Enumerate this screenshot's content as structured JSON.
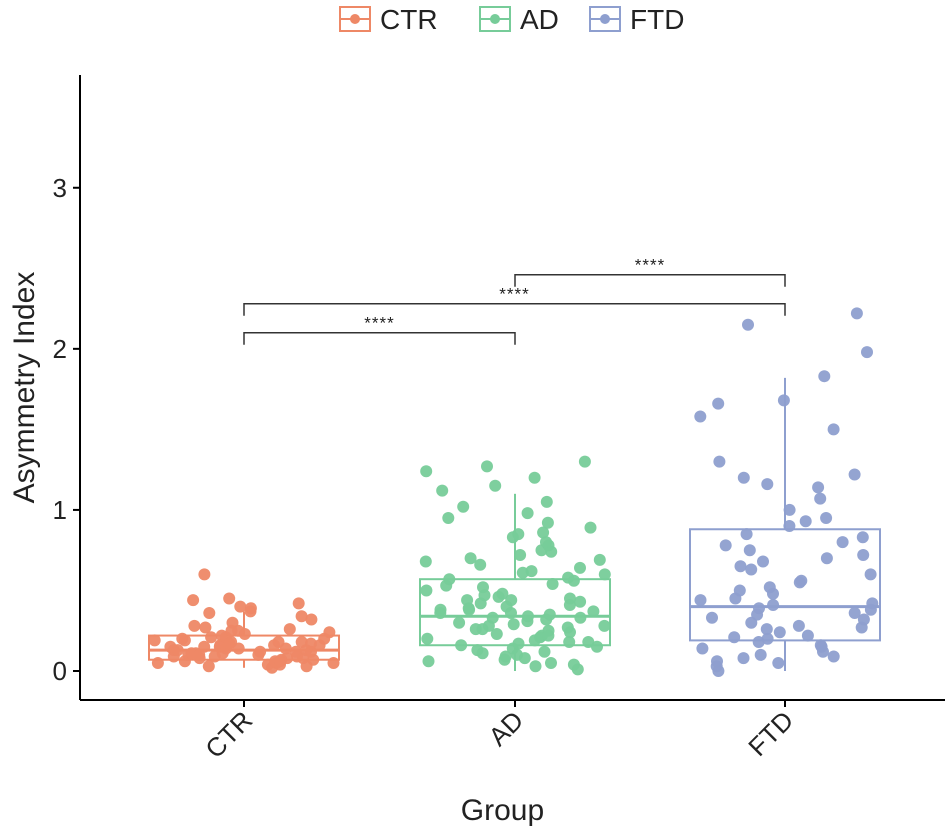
{
  "chart_data": {
    "type": "box",
    "title": "",
    "xlabel": "Group",
    "ylabel": "Asymmetry Index",
    "ylim": [
      -0.18,
      3.7
    ],
    "yticks": [
      0,
      1,
      2,
      3
    ],
    "categories": [
      "CTR",
      "AD",
      "FTD"
    ],
    "legend": {
      "position": "top",
      "entries": [
        {
          "label": "CTR",
          "color": "#EE8866"
        },
        {
          "label": "AD",
          "color": "#77CC99"
        },
        {
          "label": "FTD",
          "color": "#8E9FCF"
        }
      ]
    },
    "series": [
      {
        "name": "CTR",
        "color": "#EE8866",
        "box": {
          "lower_whisker": 0.02,
          "q1": 0.07,
          "median": 0.13,
          "q3": 0.22,
          "upper_whisker": 0.37
        },
        "outliers": [
          0.6,
          0.45,
          0.44,
          0.42,
          0.4,
          0.39
        ],
        "points": [
          0.02,
          0.03,
          0.04,
          0.05,
          0.05,
          0.06,
          0.06,
          0.07,
          0.07,
          0.08,
          0.08,
          0.09,
          0.09,
          0.1,
          0.1,
          0.11,
          0.11,
          0.12,
          0.12,
          0.13,
          0.13,
          0.14,
          0.14,
          0.15,
          0.15,
          0.16,
          0.16,
          0.17,
          0.17,
          0.18,
          0.18,
          0.19,
          0.2,
          0.21,
          0.22,
          0.23,
          0.24,
          0.25,
          0.26,
          0.28,
          0.3,
          0.32,
          0.34,
          0.36,
          0.37,
          0.03,
          0.06,
          0.09,
          0.12,
          0.15,
          0.18,
          0.21,
          0.04,
          0.08,
          0.11,
          0.14,
          0.17,
          0.2,
          0.25,
          0.05,
          0.1,
          0.13,
          0.16,
          0.19,
          0.27
        ]
      },
      {
        "name": "AD",
        "color": "#77CC99",
        "box": {
          "lower_whisker": 0.0,
          "q1": 0.16,
          "median": 0.34,
          "q3": 0.57,
          "upper_whisker": 1.1
        },
        "outliers": [
          1.3,
          1.27,
          1.24,
          1.2,
          1.15,
          1.12
        ],
        "points": [
          0.01,
          0.03,
          0.05,
          0.06,
          0.08,
          0.09,
          0.1,
          0.12,
          0.13,
          0.14,
          0.15,
          0.16,
          0.17,
          0.18,
          0.19,
          0.2,
          0.21,
          0.22,
          0.23,
          0.24,
          0.25,
          0.26,
          0.27,
          0.28,
          0.29,
          0.3,
          0.31,
          0.32,
          0.33,
          0.34,
          0.35,
          0.36,
          0.37,
          0.38,
          0.39,
          0.4,
          0.41,
          0.42,
          0.43,
          0.44,
          0.45,
          0.46,
          0.48,
          0.5,
          0.52,
          0.54,
          0.56,
          0.58,
          0.6,
          0.62,
          0.64,
          0.66,
          0.68,
          0.7,
          0.72,
          0.75,
          0.78,
          0.8,
          0.83,
          0.86,
          0.89,
          0.92,
          0.95,
          0.98,
          1.02,
          1.05,
          0.07,
          0.11,
          0.22,
          0.28,
          0.33,
          0.38,
          0.47,
          0.53,
          0.61,
          0.69,
          0.74,
          0.85,
          0.04,
          0.18,
          0.26,
          0.36,
          0.44,
          0.57
        ]
      },
      {
        "name": "FTD",
        "color": "#8E9FCF",
        "box": {
          "lower_whisker": 0.0,
          "q1": 0.19,
          "median": 0.4,
          "q3": 0.88,
          "upper_whisker": 1.82
        },
        "outliers": [
          2.22,
          2.15,
          1.98,
          1.83
        ],
        "points": [
          0.0,
          0.03,
          0.06,
          0.09,
          0.12,
          0.15,
          0.18,
          0.21,
          0.24,
          0.27,
          0.3,
          0.33,
          0.36,
          0.39,
          0.42,
          0.45,
          0.5,
          0.55,
          0.6,
          0.65,
          0.7,
          0.75,
          0.8,
          0.85,
          0.9,
          0.95,
          1.0,
          1.07,
          1.14,
          1.2,
          1.3,
          1.5,
          1.58,
          1.66,
          1.68,
          0.05,
          0.1,
          0.16,
          0.22,
          0.28,
          0.35,
          0.41,
          0.48,
          0.56,
          0.63,
          0.72,
          0.83,
          0.93,
          1.16,
          1.22,
          0.08,
          0.14,
          0.2,
          0.26,
          0.32,
          0.38,
          0.44,
          0.52,
          0.68,
          0.78
        ]
      }
    ],
    "comparisons": [
      {
        "from": "CTR",
        "to": "AD",
        "y": 2.1,
        "label": "****"
      },
      {
        "from": "CTR",
        "to": "FTD",
        "y": 2.28,
        "label": "****"
      },
      {
        "from": "AD",
        "to": "FTD",
        "y": 2.46,
        "label": "****"
      }
    ]
  }
}
